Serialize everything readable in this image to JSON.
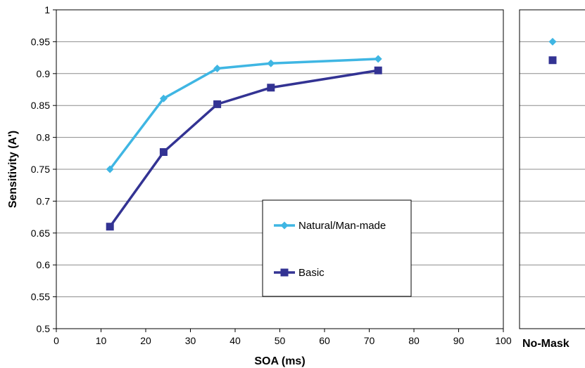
{
  "chart_data": [
    {
      "type": "line",
      "xlabel": "SOA (ms)",
      "ylabel": "Sensitivity (A')",
      "xlim": [
        0,
        100
      ],
      "ylim": [
        0.5,
        1
      ],
      "xticks": [
        "0",
        "10",
        "20",
        "30",
        "40",
        "50",
        "60",
        "70",
        "80",
        "90",
        "100"
      ],
      "yticks": [
        "0.5",
        "0.55",
        "0.6",
        "0.65",
        "0.7",
        "0.75",
        "0.8",
        "0.85",
        "0.9",
        "0.95",
        "1"
      ],
      "grid": true,
      "legend_position": "center-right",
      "series": [
        {
          "name": "Natural/Man-made",
          "color": "#3fb6e3",
          "marker": "diamond",
          "points": [
            {
              "x": 12,
              "y": 0.75
            },
            {
              "x": 24,
              "y": 0.861
            },
            {
              "x": 36,
              "y": 0.908
            },
            {
              "x": 48,
              "y": 0.916
            },
            {
              "x": 72,
              "y": 0.923
            }
          ]
        },
        {
          "name": "Basic",
          "color": "#333393",
          "marker": "square",
          "points": [
            {
              "x": 12,
              "y": 0.66
            },
            {
              "x": 24,
              "y": 0.777
            },
            {
              "x": 36,
              "y": 0.852
            },
            {
              "x": 48,
              "y": 0.878
            },
            {
              "x": 72,
              "y": 0.905
            }
          ]
        }
      ]
    },
    {
      "type": "scatter",
      "categories": [
        "No-Mask"
      ],
      "ylim": [
        0.5,
        1
      ],
      "grid": true,
      "series": [
        {
          "name": "Natural/Man-made",
          "values": [
            0.95
          ]
        },
        {
          "name": "Basic",
          "values": [
            0.921
          ]
        }
      ]
    }
  ]
}
